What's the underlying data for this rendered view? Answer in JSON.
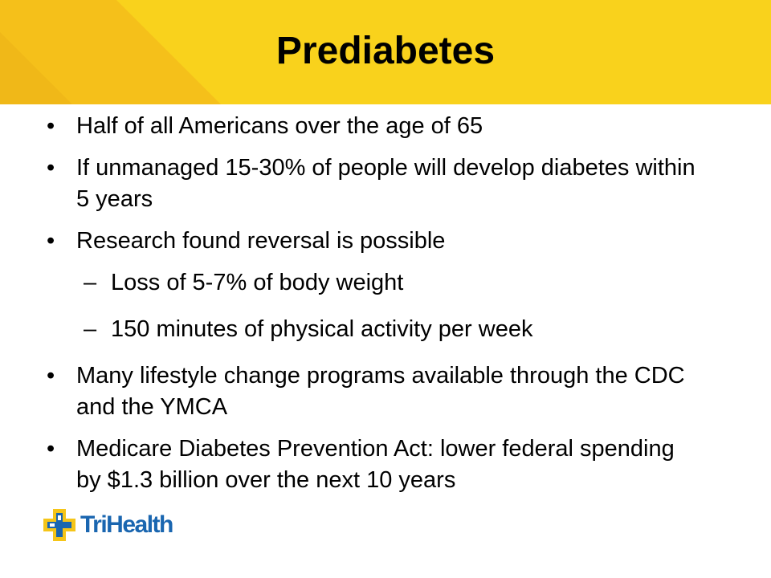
{
  "slide": {
    "title": "Prediabetes",
    "bullets": [
      {
        "text": "Half of all Americans over the age of 65"
      },
      {
        "text": "If unmanaged 15-30% of people will develop diabetes within 5 years"
      },
      {
        "text": "Research found reversal is possible"
      },
      {
        "text": "Many lifestyle change programs available through the CDC and the YMCA"
      },
      {
        "text": "Medicare Diabetes Prevention Act: lower federal spending by $1.3 billion over the next 10 years"
      }
    ],
    "sub_bullets": [
      {
        "text": "Loss of 5-7% of body weight"
      },
      {
        "text": "150 minutes of physical activity per week"
      }
    ],
    "bullet_glyph": "•",
    "sub_bullet_glyph": "–",
    "logo": {
      "text": "TriHealth",
      "icon": "trihealth-cross-icon"
    },
    "colors": {
      "header_yellow": "#f9d21c",
      "header_yellow_light": "#f3c21a",
      "logo_blue": "#1a66b0",
      "logo_cross_yellow": "#f5c518"
    }
  }
}
